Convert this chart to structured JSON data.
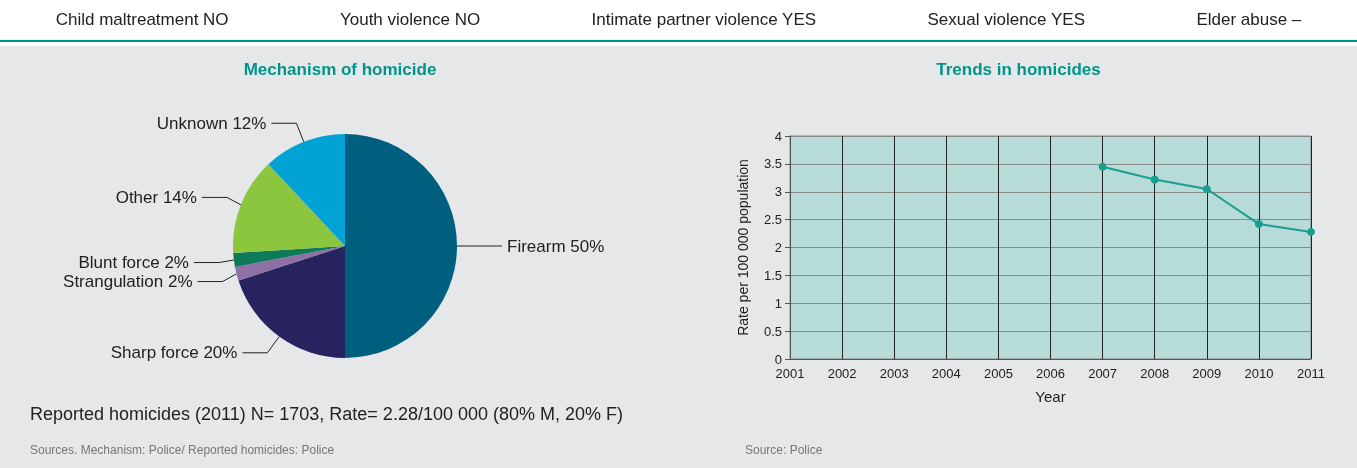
{
  "chart_data": [
    {
      "type": "other",
      "annotations": [
        "Child maltreatment NO",
        "Youth violence NO",
        "Intimate partner violence YES",
        "Sexual violence YES",
        "Elder abuse –"
      ]
    },
    {
      "type": "pie",
      "title": "Mechanism of homicide",
      "categories": [
        "Firearm",
        "Sharp force",
        "Strangulation",
        "Blunt force",
        "Other",
        "Unknown"
      ],
      "values": [
        50,
        20,
        2,
        2,
        14,
        12
      ],
      "value_labels": [
        "50%",
        "20%",
        "2%",
        "2%",
        "14%",
        "12%"
      ],
      "colors": [
        "#005f7f",
        "#26235f",
        "#8e6fa6",
        "#0f7a5a",
        "#8cc63f",
        "#00a3d4"
      ],
      "annotations": [
        "Reported homicides (2011) N= 1703, Rate= 2.28/100 000 (80% M, 20% F)",
        "Sources. Mechanism: Police/ Reported homicides: Police"
      ]
    },
    {
      "type": "line",
      "title": "Trends in homicides",
      "xlabel": "Year",
      "ylabel": "Rate per 100 000 population",
      "categories": [
        "2001",
        "2002",
        "2003",
        "2004",
        "2005",
        "2006",
        "2007",
        "2008",
        "2009",
        "2010",
        "2011"
      ],
      "series": [
        {
          "color": "#1a9e8f",
          "values": [
            null,
            null,
            null,
            null,
            null,
            null,
            3.45,
            3.22,
            3.05,
            2.42,
            2.28
          ]
        }
      ],
      "ylim": [
        0,
        4
      ],
      "yticks": [
        0,
        0.5,
        1,
        1.5,
        2,
        2.5,
        3,
        3.5,
        4
      ],
      "grid": true,
      "marker": "circle",
      "annotations": [
        "Source: Police"
      ]
    }
  ]
}
